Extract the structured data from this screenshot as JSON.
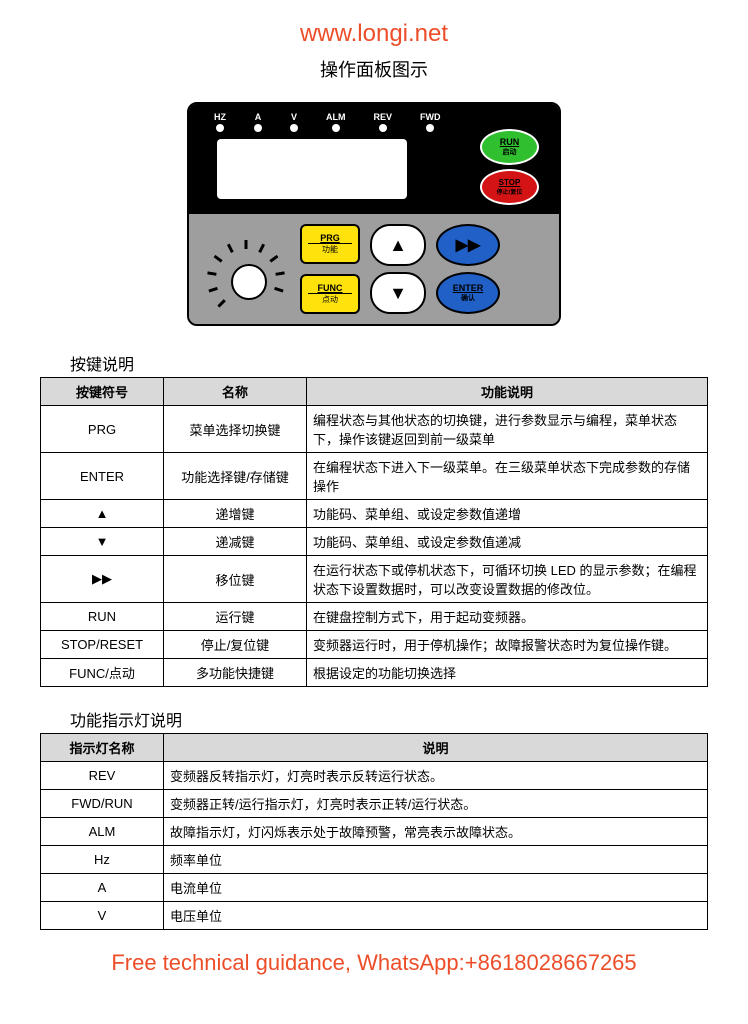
{
  "header_url": "www.longi.net",
  "page_title": "操作面板图示",
  "panel": {
    "leds": [
      "HZ",
      "A",
      "V",
      "ALM",
      "REV",
      "FWD"
    ],
    "run_btn": {
      "label": "RUN",
      "sub": "启动"
    },
    "stop_btn": {
      "label": "STOP",
      "sub": "停止/复位"
    },
    "prg_btn": {
      "label": "PRG",
      "sub": "功能"
    },
    "func_btn": {
      "label": "FUNC",
      "sub": "点动"
    },
    "enter_btn": {
      "label": "ENTER",
      "sub": "确认"
    },
    "colors": {
      "panel_top": "#000000",
      "panel_bottom": "#9e9e9e",
      "run": "#2fbf2f",
      "stop": "#d41414",
      "yellow": "#fde30b",
      "blue": "#2060c7",
      "white": "#ffffff"
    }
  },
  "keys_section_title": "按键说明",
  "keys_table": {
    "headers": [
      "按键符号",
      "名称",
      "功能说明"
    ],
    "rows": [
      [
        "PRG",
        "菜单选择切换键",
        "编程状态与其他状态的切换键，进行参数显示与编程，菜单状态下，操作该键返回到前一级菜单"
      ],
      [
        "ENTER",
        "功能选择键/存储键",
        "在编程状态下进入下一级菜单。在三级菜单状态下完成参数的存储操作"
      ],
      [
        "▲",
        "递增键",
        "功能码、菜单组、或设定参数值递增"
      ],
      [
        "▼",
        "递减键",
        "功能码、菜单组、或设定参数值递减"
      ],
      [
        "▶▶",
        "移位键",
        "在运行状态下或停机状态下，可循环切换 LED 的显示参数；在编程状态下设置数据时，可以改变设置数据的修改位。"
      ],
      [
        "RUN",
        "运行键",
        "在键盘控制方式下，用于起动变频器。"
      ],
      [
        "STOP/RESET",
        "停止/复位键",
        "变频器运行时，用于停机操作；故障报警状态时为复位操作键。"
      ],
      [
        "FUNC/点动",
        "多功能快捷键",
        "根据设定的功能切换选择"
      ]
    ]
  },
  "indicators_section_title": "功能指示灯说明",
  "indicators_table": {
    "headers": [
      "指示灯名称",
      "说明"
    ],
    "rows": [
      [
        "REV",
        "变频器反转指示灯，灯亮时表示反转运行状态。"
      ],
      [
        "FWD/RUN",
        "变频器正转/运行指示灯，灯亮时表示正转/运行状态。"
      ],
      [
        "ALM",
        "故障指示灯，灯闪烁表示处于故障预警，常亮表示故障状态。"
      ],
      [
        "Hz",
        "频率单位"
      ],
      [
        "A",
        "电流单位"
      ],
      [
        "V",
        "电压单位"
      ]
    ]
  },
  "footer": "Free technical guidance, WhatsApp:+8618028667265"
}
